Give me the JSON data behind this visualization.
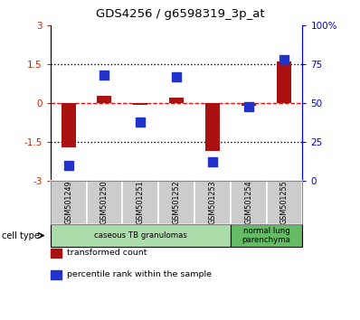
{
  "title": "GDS4256 / g6598319_3p_at",
  "samples": [
    "GSM501249",
    "GSM501250",
    "GSM501251",
    "GSM501252",
    "GSM501253",
    "GSM501254",
    "GSM501255"
  ],
  "transformed_count": [
    -1.7,
    0.3,
    -0.05,
    0.2,
    -1.85,
    -0.1,
    1.6
  ],
  "percentile_rank": [
    10,
    68,
    38,
    67,
    12,
    48,
    78
  ],
  "ylim_left": [
    -3,
    3
  ],
  "ylim_right": [
    0,
    100
  ],
  "yticks_left": [
    -3,
    -1.5,
    0,
    1.5,
    3
  ],
  "yticks_right": [
    0,
    25,
    50,
    75,
    100
  ],
  "yticklabels_left": [
    "-3",
    "-1.5",
    "0",
    "1.5",
    "3"
  ],
  "yticklabels_right": [
    "0",
    "25",
    "50",
    "75",
    "100%"
  ],
  "bar_color": "#AA1111",
  "dot_color": "#2233CC",
  "bar_width": 0.4,
  "dot_size": 55,
  "cell_type_groups": [
    {
      "label": "caseous TB granulomas",
      "indices": [
        0,
        4
      ],
      "color": "#AADDAA"
    },
    {
      "label": "normal lung\nparenchyma",
      "indices": [
        5,
        6
      ],
      "color": "#66BB66"
    }
  ],
  "cell_type_label": "cell type",
  "legend_entries": [
    {
      "label": "transformed count",
      "color": "#AA1111"
    },
    {
      "label": "percentile rank within the sample",
      "color": "#2233CC"
    }
  ],
  "tick_color_left": "#CC2200",
  "tick_color_right": "#0000CC",
  "sample_box_color": "#CCCCCC",
  "sample_box_edge": "#FFFFFF"
}
